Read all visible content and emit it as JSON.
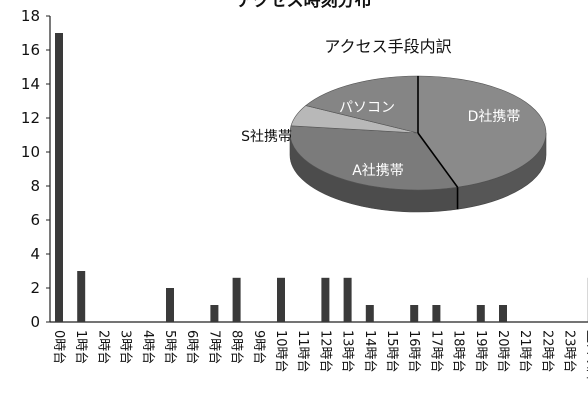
{
  "chart_data": [
    {
      "type": "bar",
      "title": "アクセス時刻分布",
      "xlabel": "",
      "ylabel": "",
      "ylim": [
        0,
        18
      ],
      "yticks": [
        0,
        2,
        4,
        6,
        8,
        10,
        12,
        14,
        16,
        18
      ],
      "categories": [
        "0時台",
        "1時台",
        "2時台",
        "3時台",
        "4時台",
        "5時台",
        "6時台",
        "7時台",
        "8時台",
        "9時台",
        "10時台",
        "11時台",
        "12時台",
        "13時台",
        "14時台",
        "15時台",
        "16時台",
        "17時台",
        "18時台",
        "19時台",
        "20時台",
        "21時台",
        "22時台",
        "23時台",
        "翌日以降"
      ],
      "values": [
        17,
        3,
        0,
        0,
        0,
        2,
        0,
        1,
        2.6,
        0,
        2.6,
        0,
        2.6,
        2.6,
        1,
        0,
        1,
        1,
        0,
        1,
        1,
        0,
        0,
        0,
        2.6
      ],
      "bar_color": "#3a3a3a",
      "grid": false
    },
    {
      "type": "pie",
      "title": "アクセス手段内訳",
      "style": "3d",
      "slices": [
        {
          "label": "D社携帯",
          "value": 45,
          "color": "#8a8a8a"
        },
        {
          "label": "A社携帯",
          "value": 32,
          "color": "#7b7b7b"
        },
        {
          "label": "S社携帯",
          "value": 6,
          "color": "#b8b8b8"
        },
        {
          "label": "パソコン",
          "value": 17,
          "color": "#858585"
        }
      ]
    }
  ]
}
